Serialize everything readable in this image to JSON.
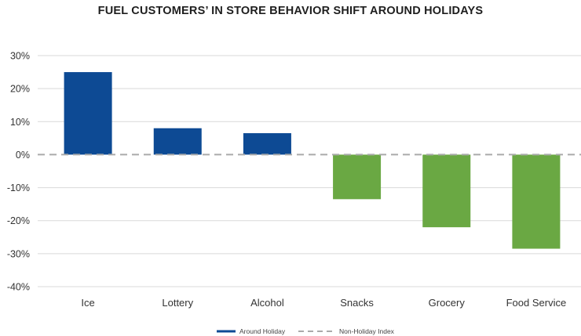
{
  "chart_data": {
    "type": "bar",
    "title": "FUEL CUSTOMERS’ IN STORE BEHAVIOR SHIFT AROUND HOLIDAYS",
    "xlabel": "",
    "ylabel": "",
    "categories": [
      "Ice",
      "Lottery",
      "Alcohol",
      "Snacks",
      "Grocery",
      "Food Service"
    ],
    "series": [
      {
        "name": "Around Holiday",
        "values": [
          25,
          8,
          6.5,
          -13.5,
          -22,
          -28.5
        ]
      }
    ],
    "reference_line": {
      "name": "Non-Holiday Index",
      "value": 0
    },
    "bar_colors": [
      "#0d4a94",
      "#0d4a94",
      "#0d4a94",
      "#6aa843",
      "#6aa843",
      "#6aa843"
    ],
    "reference_color": "#aaaaaa",
    "ylim": [
      -40,
      30
    ],
    "yticks": [
      30,
      20,
      10,
      0,
      -10,
      -20,
      -30,
      -40
    ],
    "ytick_labels": [
      "30%",
      "20%",
      "10%",
      "0%",
      "-10%",
      "-20%",
      "-30%",
      "-40%"
    ],
    "grid": true,
    "legend_position": "bottom-center"
  }
}
